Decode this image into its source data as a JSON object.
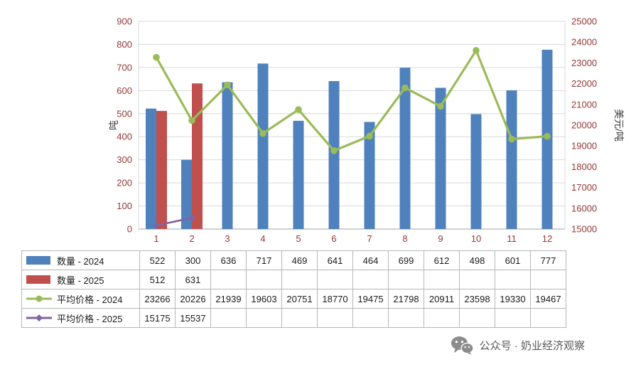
{
  "chart_data": {
    "type": "combo-bar-line",
    "categories": [
      "1",
      "2",
      "3",
      "4",
      "5",
      "6",
      "7",
      "8",
      "9",
      "10",
      "11",
      "12"
    ],
    "bar_series": [
      {
        "name": "数量 - 2024",
        "color": "#4f81bd",
        "values": [
          522,
          300,
          636,
          717,
          469,
          641,
          464,
          699,
          612,
          498,
          601,
          777
        ]
      },
      {
        "name": "数量 - 2025",
        "color": "#c0504d",
        "values": [
          512,
          631
        ]
      }
    ],
    "line_series": [
      {
        "name": "平均价格 - 2024",
        "color": "#9bbb59",
        "marker": "circle",
        "values": [
          23266,
          20226,
          21939,
          19603,
          20751,
          18770,
          19475,
          21798,
          20911,
          23598,
          19330,
          19467
        ]
      },
      {
        "name": "平均价格 - 2025",
        "color": "#8064a2",
        "marker": "diamond",
        "values": [
          15175,
          15537
        ]
      }
    ],
    "left_axis": {
      "label": "吨",
      "min": 0,
      "max": 900,
      "step": 100
    },
    "right_axis": {
      "label": "美元/吨",
      "min": 15000,
      "max": 25000,
      "step": 1000
    },
    "grid": true,
    "legend_position": "table-below",
    "tick_color": "#953735",
    "title_color": "#404040",
    "grid_color": "#d9d9d9",
    "axis_color": "#a6a6a6"
  },
  "table": {
    "border_color": "#b7b7b7"
  },
  "watermark": {
    "icon": "wechat-icon",
    "text": "公众号 · 奶业经济观察"
  }
}
